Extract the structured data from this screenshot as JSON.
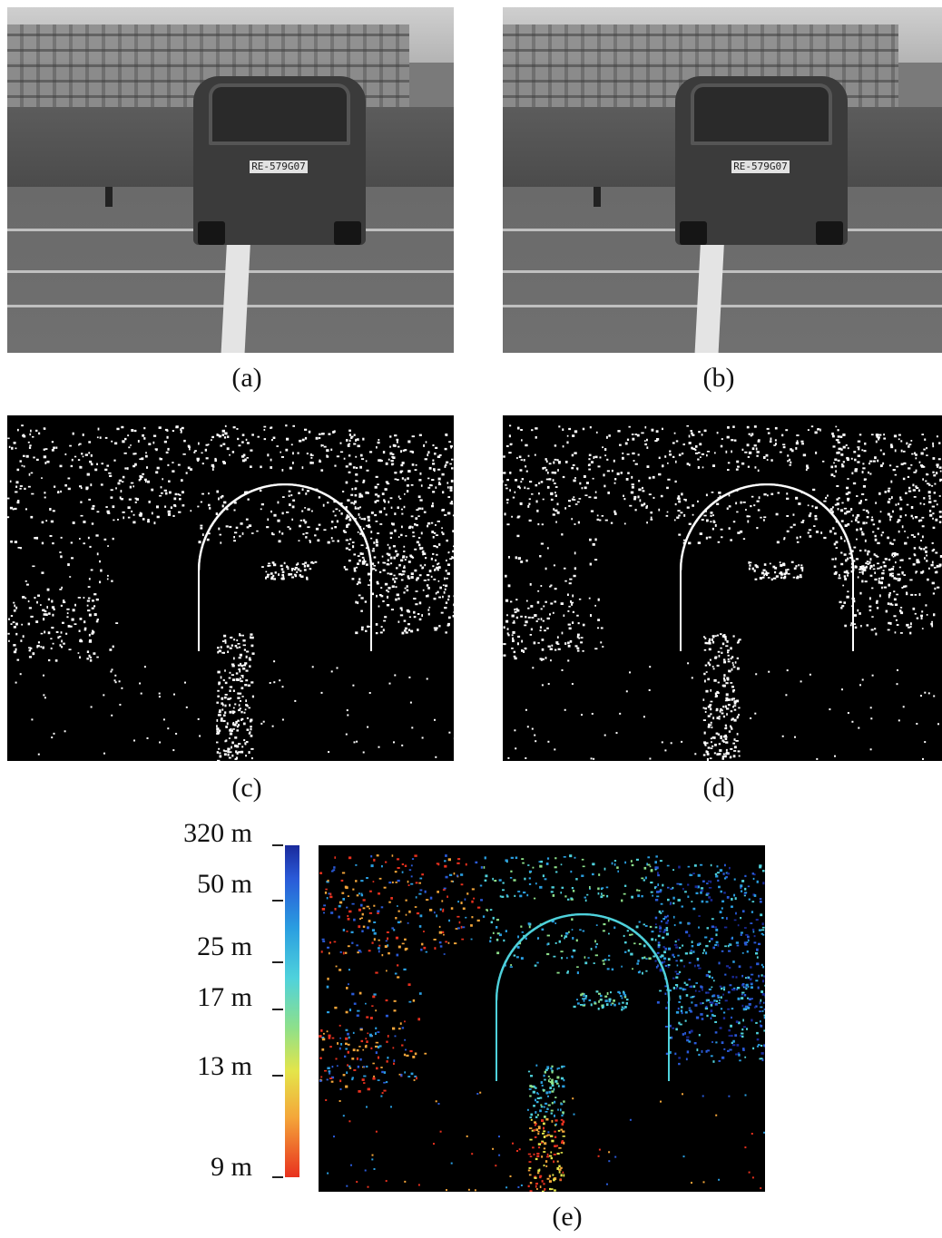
{
  "captions": {
    "a": "(a)",
    "b": "(b)",
    "c": "(c)",
    "d": "(d)",
    "e": "(e)"
  },
  "plate_text": "RE-579G07",
  "colorbar": {
    "labels": [
      "320 m",
      "50 m",
      "25 m",
      "17 m",
      "13 m",
      "9 m"
    ],
    "colors": [
      "#1a2a9c",
      "#2a5ad8",
      "#2a9ee0",
      "#4fd2dc",
      "#8ee08a",
      "#e4e54a",
      "#f4a63a",
      "#e8311e"
    ]
  }
}
